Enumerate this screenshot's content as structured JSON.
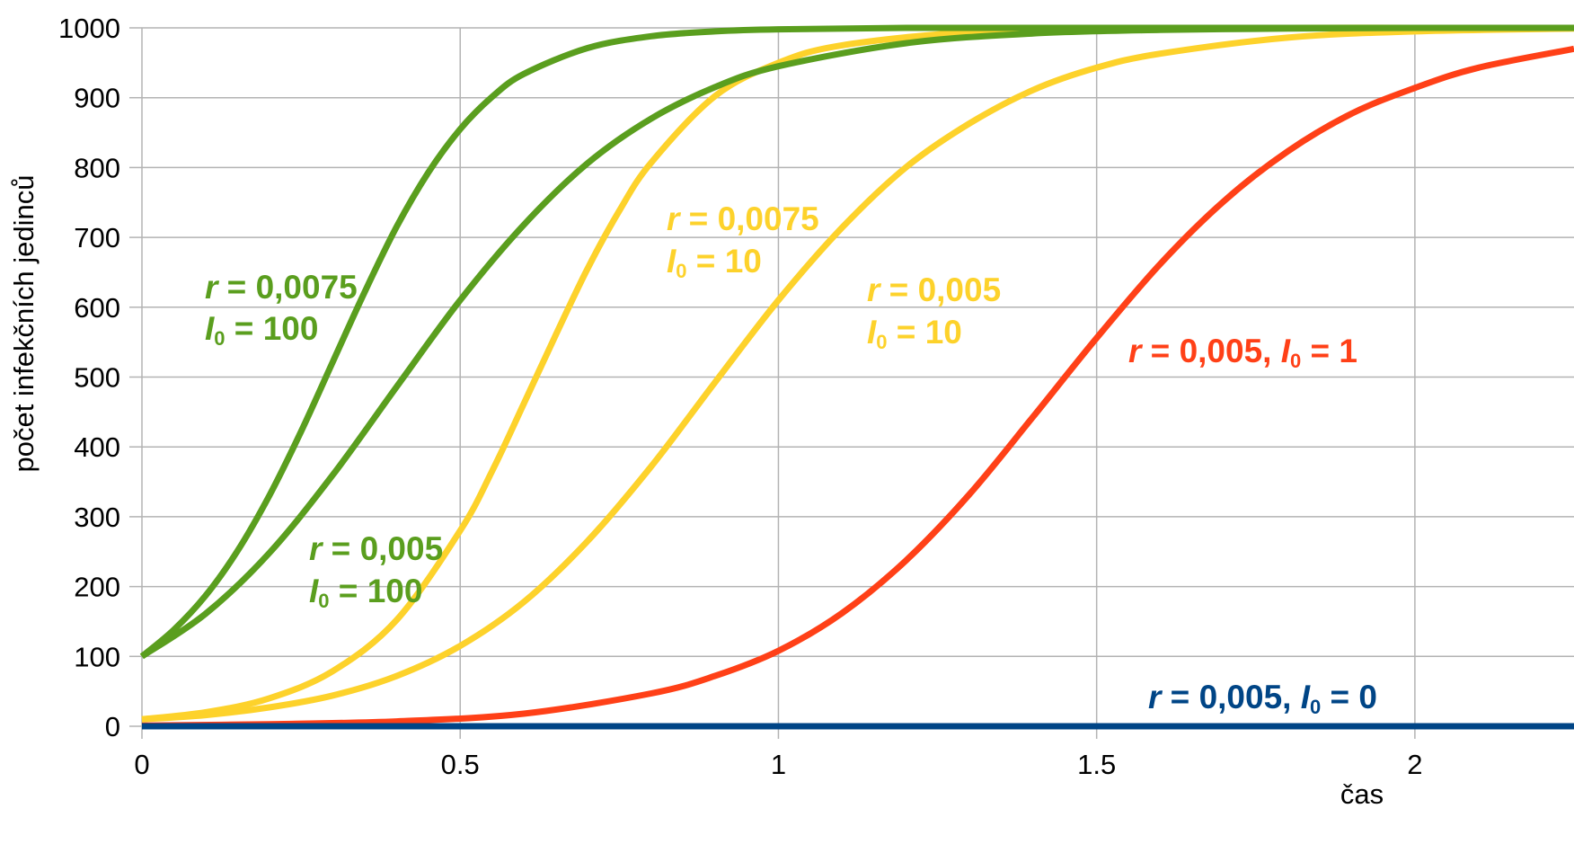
{
  "chart_data": {
    "type": "line",
    "xlabel": "čas",
    "ylabel": "počet infekčních jedinců",
    "xlim": [
      0,
      2.25
    ],
    "ylim": [
      0,
      1000
    ],
    "xticks": [
      "0",
      "0.5",
      "1",
      "1.5",
      "2"
    ],
    "xtick_values": [
      0,
      0.5,
      1,
      1.5,
      2
    ],
    "yticks": [
      "0",
      "100",
      "200",
      "300",
      "400",
      "500",
      "600",
      "700",
      "800",
      "900",
      "1000"
    ],
    "ytick_values": [
      0,
      100,
      200,
      300,
      400,
      500,
      600,
      700,
      800,
      900,
      1000
    ],
    "grid": true,
    "series": [
      {
        "name": "r = 0,0075, I0 = 100",
        "color": "#5a9e1e",
        "x": [
          0,
          0.05,
          0.1,
          0.15,
          0.2,
          0.25,
          0.3,
          0.35,
          0.4,
          0.45,
          0.5,
          0.55,
          0.6,
          0.7,
          0.8,
          0.9,
          1.0,
          1.2,
          1.5,
          2.0,
          2.25
        ],
        "y": [
          100,
          138,
          187,
          251,
          330,
          422,
          522,
          622,
          715,
          793,
          855,
          901,
          934,
          971,
          988,
          995,
          998,
          1000,
          1000,
          1000,
          1000
        ]
      },
      {
        "name": "r = 0,005, I0 = 100",
        "color": "#5a9e1e",
        "x": [
          0,
          0.1,
          0.2,
          0.3,
          0.4,
          0.5,
          0.6,
          0.7,
          0.8,
          0.9,
          1.0,
          1.2,
          1.4,
          1.6,
          1.8,
          2.0,
          2.25
        ],
        "y": [
          100,
          161,
          248,
          360,
          486,
          610,
          718,
          806,
          870,
          915,
          945,
          978,
          992,
          997,
          999,
          1000,
          1000
        ]
      },
      {
        "name": "r = 0,0075, I0 = 10",
        "color": "#fdd22b",
        "x": [
          0,
          0.1,
          0.2,
          0.3,
          0.4,
          0.5,
          0.55,
          0.6,
          0.65,
          0.7,
          0.75,
          0.8,
          0.9,
          1.0,
          1.1,
          1.3,
          1.5,
          1.8,
          2.0,
          2.25
        ],
        "y": [
          10,
          20,
          40,
          79,
          152,
          280,
          365,
          462,
          560,
          655,
          738,
          807,
          902,
          950,
          975,
          994,
          998,
          1000,
          1000,
          1000
        ]
      },
      {
        "name": "r = 0,005, I0 = 10",
        "color": "#fdd22b",
        "x": [
          0,
          0.1,
          0.2,
          0.3,
          0.4,
          0.5,
          0.6,
          0.7,
          0.8,
          0.9,
          1.0,
          1.1,
          1.2,
          1.3,
          1.4,
          1.5,
          1.6,
          1.8,
          2.0,
          2.25
        ],
        "y": [
          10,
          16,
          27,
          44,
          72,
          115,
          178,
          265,
          372,
          492,
          610,
          714,
          800,
          863,
          911,
          943,
          963,
          986,
          995,
          999
        ]
      },
      {
        "name": "r = 0,005, I0 = 1",
        "color": "#ff4017",
        "x": [
          0,
          0.2,
          0.4,
          0.6,
          0.8,
          0.9,
          1.0,
          1.1,
          1.2,
          1.3,
          1.4,
          1.5,
          1.6,
          1.7,
          1.8,
          1.9,
          2.0,
          2.1,
          2.25
        ],
        "y": [
          1,
          3,
          7,
          18,
          47,
          72,
          108,
          162,
          237,
          332,
          443,
          556,
          662,
          752,
          823,
          877,
          914,
          943,
          970
        ]
      },
      {
        "name": "r = 0,005, I0 = 0",
        "color": "#004586",
        "x": [
          0,
          2.25
        ],
        "y": [
          0,
          0
        ]
      }
    ],
    "annotations": [
      {
        "r": "r",
        "eq1": " = 0,0075",
        "i": "I",
        "sub": "0",
        "eq2": " = 100",
        "color": "#5a9e1e"
      },
      {
        "r": "r",
        "eq1": " = 0,005",
        "i": "I",
        "sub": "0",
        "eq2": " = 100",
        "color": "#5a9e1e"
      },
      {
        "r": "r",
        "eq1": " = 0,0075",
        "i": "I",
        "sub": "0",
        "eq2": " = 10",
        "color": "#fdd22b"
      },
      {
        "r": "r",
        "eq1": " = 0,005",
        "i": "I",
        "sub": "0",
        "eq2": " = 10",
        "color": "#fdd22b"
      },
      {
        "r": "r",
        "eq1": " = 0,005, ",
        "i": "I",
        "sub": "0",
        "eq2": " = 1",
        "color": "#ff4017"
      },
      {
        "r": "r",
        "eq1": " = 0,005, ",
        "i": "I",
        "sub": "0",
        "eq2": " = 0",
        "color": "#004586"
      }
    ]
  }
}
